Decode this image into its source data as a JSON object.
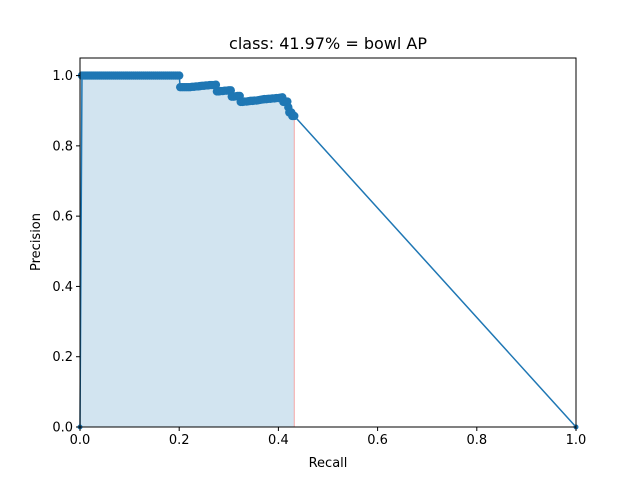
{
  "chart_data": {
    "type": "line",
    "title": "class: 41.97% = bowl AP",
    "xlabel": "Recall",
    "ylabel": "Precision",
    "xlim": [
      0,
      1
    ],
    "ylim": [
      0,
      1.05
    ],
    "xticks": [
      "0.0",
      "0.2",
      "0.4",
      "0.6",
      "0.8",
      "1.0"
    ],
    "yticks": [
      "0.0",
      "0.2",
      "0.4",
      "0.6",
      "0.8",
      "1.0"
    ],
    "grid": false,
    "colors": {
      "line": "#1f77b4",
      "fill": "#1f77b4",
      "fill_edge": "#f4a6a6"
    },
    "series": [
      {
        "points": [
          [
            0.0,
            0.0
          ],
          [
            0.004,
            1.0
          ],
          [
            0.008,
            1.0
          ],
          [
            0.012,
            1.0
          ],
          [
            0.016,
            1.0
          ],
          [
            0.02,
            1.0
          ],
          [
            0.024,
            1.0
          ],
          [
            0.028,
            1.0
          ],
          [
            0.032,
            1.0
          ],
          [
            0.036,
            1.0
          ],
          [
            0.04,
            1.0
          ],
          [
            0.044,
            1.0
          ],
          [
            0.048,
            1.0
          ],
          [
            0.052,
            1.0
          ],
          [
            0.056,
            1.0
          ],
          [
            0.06,
            1.0
          ],
          [
            0.064,
            1.0
          ],
          [
            0.068,
            1.0
          ],
          [
            0.072,
            1.0
          ],
          [
            0.076,
            1.0
          ],
          [
            0.08,
            1.0
          ],
          [
            0.084,
            1.0
          ],
          [
            0.088,
            1.0
          ],
          [
            0.092,
            1.0
          ],
          [
            0.096,
            1.0
          ],
          [
            0.1,
            1.0
          ],
          [
            0.104,
            1.0
          ],
          [
            0.108,
            1.0
          ],
          [
            0.112,
            1.0
          ],
          [
            0.116,
            1.0
          ],
          [
            0.12,
            1.0
          ],
          [
            0.124,
            1.0
          ],
          [
            0.128,
            1.0
          ],
          [
            0.132,
            1.0
          ],
          [
            0.136,
            1.0
          ],
          [
            0.14,
            1.0
          ],
          [
            0.144,
            1.0
          ],
          [
            0.148,
            1.0
          ],
          [
            0.152,
            1.0
          ],
          [
            0.156,
            1.0
          ],
          [
            0.16,
            1.0
          ],
          [
            0.164,
            1.0
          ],
          [
            0.168,
            1.0
          ],
          [
            0.172,
            1.0
          ],
          [
            0.176,
            1.0
          ],
          [
            0.18,
            1.0
          ],
          [
            0.184,
            1.0
          ],
          [
            0.188,
            1.0
          ],
          [
            0.192,
            1.0
          ],
          [
            0.196,
            1.0
          ],
          [
            0.2,
            1.0
          ],
          [
            0.202,
            0.967
          ],
          [
            0.206,
            0.967
          ],
          [
            0.21,
            0.967
          ],
          [
            0.214,
            0.967
          ],
          [
            0.218,
            0.967
          ],
          [
            0.222,
            0.967
          ],
          [
            0.226,
            0.968
          ],
          [
            0.23,
            0.968
          ],
          [
            0.234,
            0.969
          ],
          [
            0.238,
            0.969
          ],
          [
            0.242,
            0.97
          ],
          [
            0.246,
            0.971
          ],
          [
            0.25,
            0.971
          ],
          [
            0.254,
            0.972
          ],
          [
            0.258,
            0.972
          ],
          [
            0.262,
            0.973
          ],
          [
            0.266,
            0.973
          ],
          [
            0.27,
            0.973
          ],
          [
            0.274,
            0.974
          ],
          [
            0.276,
            0.955
          ],
          [
            0.28,
            0.955
          ],
          [
            0.284,
            0.956
          ],
          [
            0.288,
            0.956
          ],
          [
            0.292,
            0.957
          ],
          [
            0.296,
            0.957
          ],
          [
            0.3,
            0.958
          ],
          [
            0.304,
            0.958
          ],
          [
            0.306,
            0.94
          ],
          [
            0.31,
            0.94
          ],
          [
            0.314,
            0.941
          ],
          [
            0.318,
            0.942
          ],
          [
            0.322,
            0.942
          ],
          [
            0.324,
            0.925
          ],
          [
            0.328,
            0.925
          ],
          [
            0.332,
            0.926
          ],
          [
            0.336,
            0.926
          ],
          [
            0.34,
            0.927
          ],
          [
            0.344,
            0.928
          ],
          [
            0.348,
            0.928
          ],
          [
            0.352,
            0.929
          ],
          [
            0.356,
            0.929
          ],
          [
            0.36,
            0.93
          ],
          [
            0.364,
            0.931
          ],
          [
            0.368,
            0.932
          ],
          [
            0.372,
            0.933
          ],
          [
            0.376,
            0.933
          ],
          [
            0.38,
            0.934
          ],
          [
            0.384,
            0.934
          ],
          [
            0.388,
            0.935
          ],
          [
            0.392,
            0.935
          ],
          [
            0.396,
            0.936
          ],
          [
            0.4,
            0.936
          ],
          [
            0.404,
            0.937
          ],
          [
            0.408,
            0.938
          ],
          [
            0.41,
            0.925
          ],
          [
            0.414,
            0.925
          ],
          [
            0.418,
            0.926
          ],
          [
            0.42,
            0.91
          ],
          [
            0.422,
            0.895
          ],
          [
            0.426,
            0.895
          ],
          [
            0.428,
            0.885
          ],
          [
            0.43,
            0.885
          ],
          [
            0.432,
            0.885
          ],
          [
            1.0,
            0.0
          ]
        ]
      }
    ],
    "shaded_area": {
      "x": [
        0.0,
        0.004,
        0.2,
        0.2,
        0.202,
        0.274,
        0.276,
        0.304,
        0.306,
        0.322,
        0.324,
        0.408,
        0.41,
        0.418,
        0.42,
        0.422,
        0.426,
        0.428,
        0.432
      ],
      "y": [
        1.0,
        1.0,
        1.0,
        0.974,
        0.974,
        0.974,
        0.958,
        0.958,
        0.942,
        0.942,
        0.938,
        0.938,
        0.926,
        0.926,
        0.91,
        0.895,
        0.895,
        0.885,
        0.885
      ]
    }
  }
}
